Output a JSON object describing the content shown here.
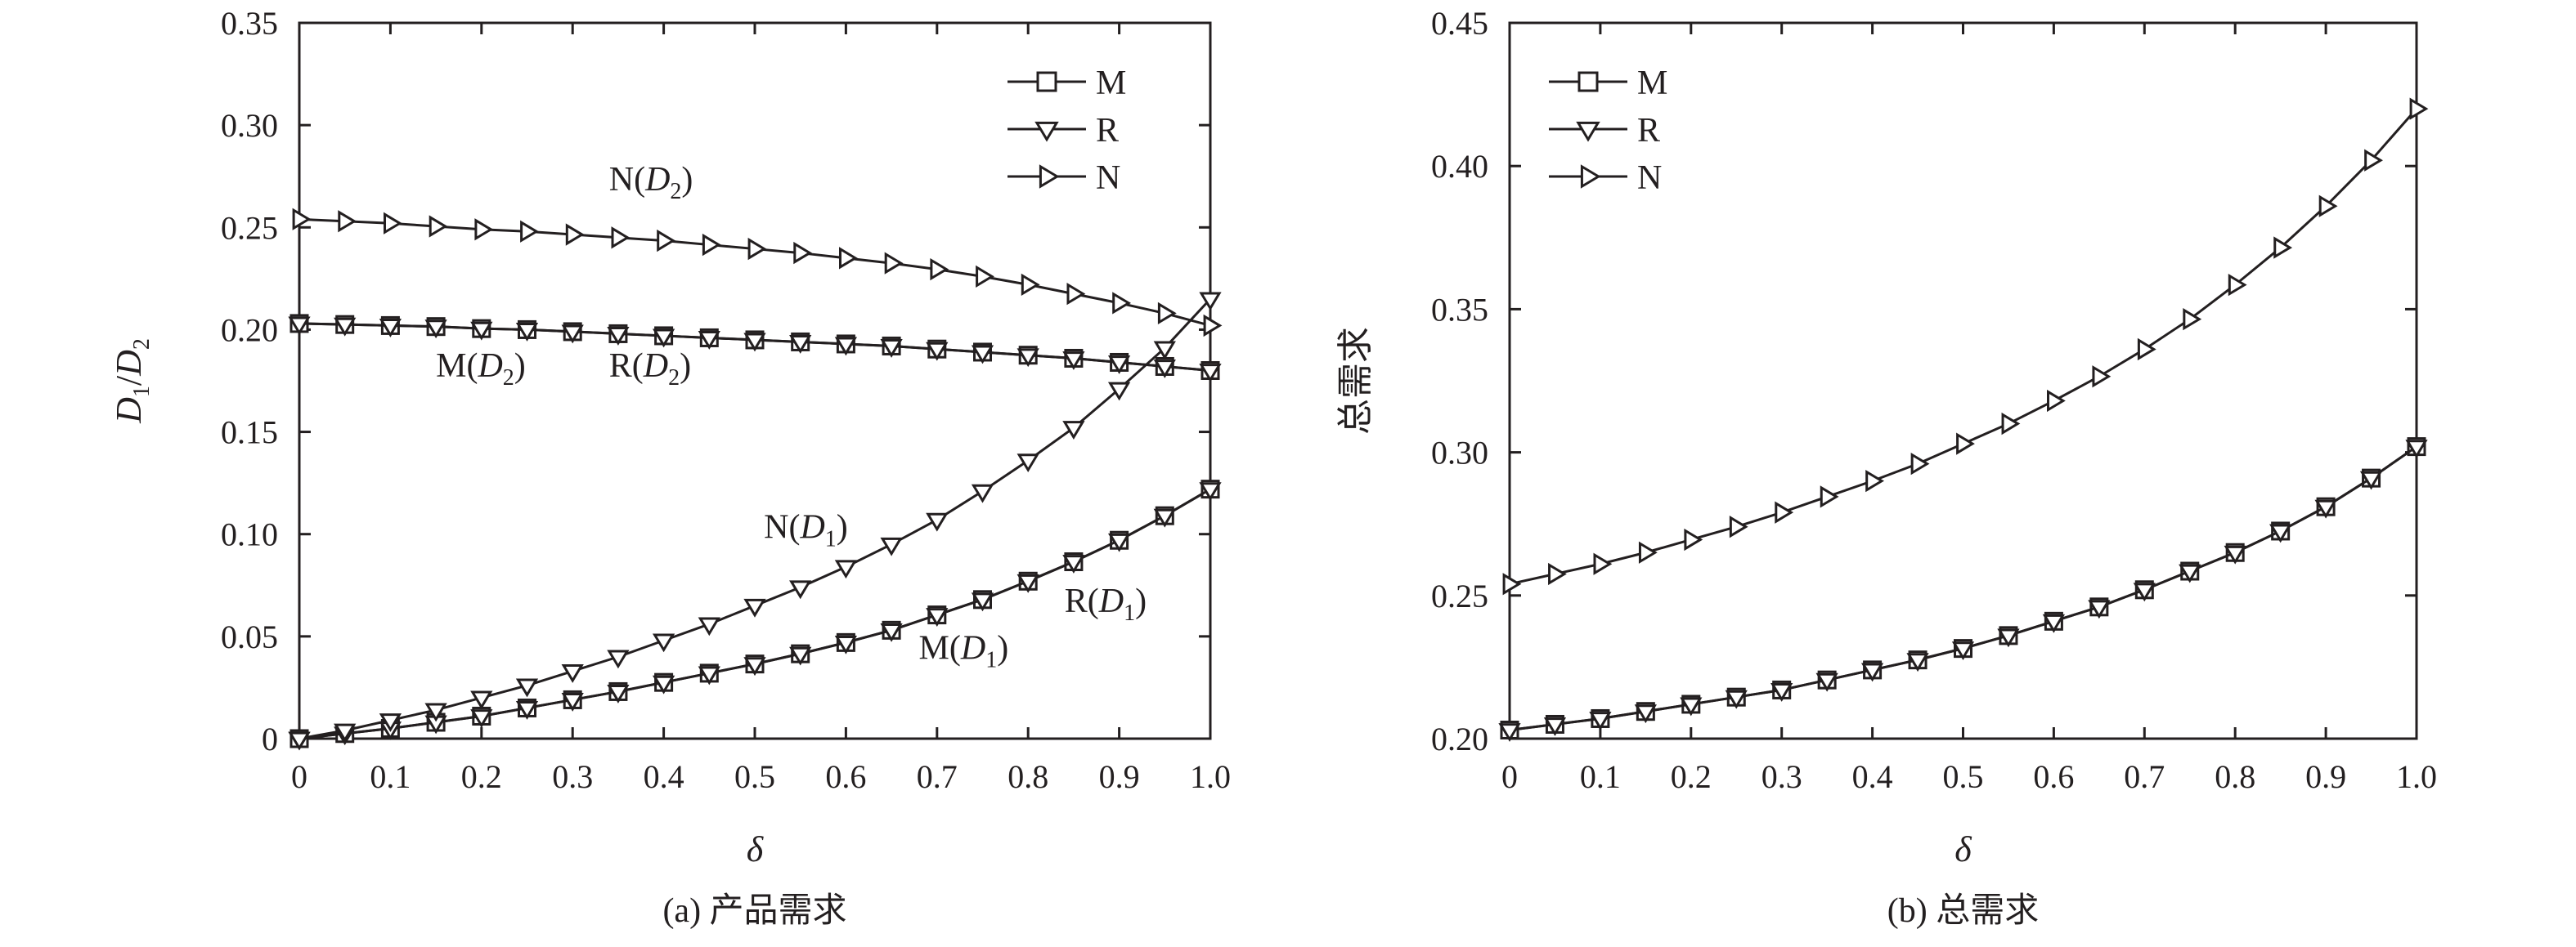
{
  "chart_data": [
    {
      "type": "line",
      "caption": "(a) 产品需求",
      "xlabel": "δ",
      "ylabel": "D1/D2",
      "xlim": [
        0,
        1
      ],
      "ylim": [
        0,
        0.35
      ],
      "xticks": [
        0,
        0.1,
        0.2,
        0.3,
        0.4,
        0.5,
        0.6,
        0.7,
        0.8,
        0.9,
        1.0
      ],
      "xtick_labels": [
        "0",
        "0.1",
        "0.2",
        "0.3",
        "0.4",
        "0.5",
        "0.6",
        "0.7",
        "0.8",
        "0.9",
        "1.0"
      ],
      "yticks": [
        0,
        0.05,
        0.1,
        0.15,
        0.2,
        0.25,
        0.3,
        0.35
      ],
      "ytick_labels": [
        "0",
        "0.05",
        "0.10",
        "0.15",
        "0.20",
        "0.25",
        "0.30",
        "0.35"
      ],
      "legend": [
        {
          "label": "M",
          "marker": "square"
        },
        {
          "label": "R",
          "marker": "triangle-down"
        },
        {
          "label": "N",
          "marker": "triangle-right"
        }
      ],
      "legend_position": "top-right",
      "x": [
        0,
        0.05,
        0.1,
        0.15,
        0.2,
        0.25,
        0.3,
        0.35,
        0.4,
        0.45,
        0.5,
        0.55,
        0.6,
        0.65,
        0.7,
        0.75,
        0.8,
        0.85,
        0.9,
        0.95,
        1.0
      ],
      "series": [
        {
          "name": "M(D2)",
          "marker": "square",
          "values": [
            0.203,
            0.2025,
            0.202,
            0.2015,
            0.2005,
            0.2,
            0.199,
            0.198,
            0.197,
            0.196,
            0.195,
            0.194,
            0.193,
            0.192,
            0.1905,
            0.189,
            0.1875,
            0.186,
            0.184,
            0.182,
            0.18
          ]
        },
        {
          "name": "R(D2)",
          "marker": "triangle-down",
          "values": [
            0.203,
            0.2025,
            0.202,
            0.2015,
            0.2005,
            0.2,
            0.199,
            0.198,
            0.197,
            0.196,
            0.195,
            0.194,
            0.193,
            0.192,
            0.1905,
            0.189,
            0.1875,
            0.186,
            0.184,
            0.182,
            0.18
          ]
        },
        {
          "name": "N(D2)",
          "marker": "triangle-right",
          "values": [
            0.254,
            0.253,
            0.252,
            0.2505,
            0.249,
            0.248,
            0.2465,
            0.245,
            0.2435,
            0.2415,
            0.2395,
            0.2375,
            0.235,
            0.2325,
            0.2295,
            0.226,
            0.222,
            0.2175,
            0.213,
            0.208,
            0.202
          ]
        },
        {
          "name": "M(D1)",
          "marker": "square",
          "values": [
            0,
            0.0025,
            0.005,
            0.008,
            0.011,
            0.015,
            0.019,
            0.023,
            0.0275,
            0.032,
            0.0365,
            0.0415,
            0.047,
            0.053,
            0.0605,
            0.068,
            0.077,
            0.0865,
            0.097,
            0.109,
            0.122
          ]
        },
        {
          "name": "R(D1)",
          "marker": "triangle-down",
          "values": [
            0,
            0.0025,
            0.005,
            0.008,
            0.011,
            0.015,
            0.019,
            0.023,
            0.0275,
            0.032,
            0.0365,
            0.0415,
            0.047,
            0.053,
            0.0605,
            0.068,
            0.077,
            0.0865,
            0.097,
            0.109,
            0.122
          ]
        },
        {
          "name": "N(D1)",
          "marker": "triangle-down",
          "values": [
            0,
            0.004,
            0.009,
            0.014,
            0.02,
            0.026,
            0.033,
            0.04,
            0.048,
            0.056,
            0.065,
            0.074,
            0.084,
            0.095,
            0.107,
            0.121,
            0.136,
            0.152,
            0.171,
            0.191,
            0.215
          ]
        }
      ],
      "annotations": [
        {
          "base": "N(",
          "sym": "D",
          "sub": "2",
          "end": ")",
          "x": 0.34,
          "y": 0.268
        },
        {
          "base": "M(",
          "sym": "D",
          "sub": "2",
          "end": ")",
          "x": 0.15,
          "y": 0.177
        },
        {
          "base": "R(",
          "sym": "D",
          "sub": "2",
          "end": ")",
          "x": 0.34,
          "y": 0.177
        },
        {
          "base": "N(",
          "sym": "D",
          "sub": "1",
          "end": ")",
          "x": 0.51,
          "y": 0.098
        },
        {
          "base": "R(",
          "sym": "D",
          "sub": "1",
          "end": ")",
          "x": 0.84,
          "y": 0.062
        },
        {
          "base": "M(",
          "sym": "D",
          "sub": "1",
          "end": ")",
          "x": 0.68,
          "y": 0.039
        }
      ]
    },
    {
      "type": "line",
      "caption": "(b) 总需求",
      "xlabel": "δ",
      "ylabel": "总需求",
      "xlim": [
        0,
        1
      ],
      "ylim": [
        0.2,
        0.45
      ],
      "xticks": [
        0,
        0.1,
        0.2,
        0.3,
        0.4,
        0.5,
        0.6,
        0.7,
        0.8,
        0.9,
        1.0
      ],
      "xtick_labels": [
        "0",
        "0.1",
        "0.2",
        "0.3",
        "0.4",
        "0.5",
        "0.6",
        "0.7",
        "0.8",
        "0.9",
        "1.0"
      ],
      "yticks": [
        0.2,
        0.25,
        0.3,
        0.35,
        0.4,
        0.45
      ],
      "ytick_labels": [
        "0.20",
        "0.25",
        "0.30",
        "0.35",
        "0.40",
        "0.45"
      ],
      "legend": [
        {
          "label": "M",
          "marker": "square"
        },
        {
          "label": "R",
          "marker": "triangle-down"
        },
        {
          "label": "N",
          "marker": "triangle-right"
        }
      ],
      "legend_position": "top-left",
      "x": [
        0,
        0.05,
        0.1,
        0.15,
        0.2,
        0.25,
        0.3,
        0.35,
        0.4,
        0.45,
        0.5,
        0.55,
        0.6,
        0.65,
        0.7,
        0.75,
        0.8,
        0.85,
        0.9,
        0.95,
        1.0
      ],
      "series": [
        {
          "name": "M",
          "marker": "square",
          "values": [
            0.203,
            0.205,
            0.207,
            0.2095,
            0.212,
            0.2145,
            0.217,
            0.2205,
            0.224,
            0.2275,
            0.2315,
            0.236,
            0.241,
            0.246,
            0.252,
            0.2585,
            0.265,
            0.2725,
            0.281,
            0.291,
            0.302
          ]
        },
        {
          "name": "R",
          "marker": "triangle-down",
          "values": [
            0.203,
            0.205,
            0.207,
            0.2095,
            0.212,
            0.2145,
            0.217,
            0.2205,
            0.224,
            0.2275,
            0.2315,
            0.236,
            0.241,
            0.246,
            0.252,
            0.2585,
            0.265,
            0.2725,
            0.281,
            0.291,
            0.302
          ]
        },
        {
          "name": "N",
          "marker": "triangle-right",
          "values": [
            0.254,
            0.2575,
            0.261,
            0.265,
            0.2695,
            0.274,
            0.279,
            0.2845,
            0.29,
            0.296,
            0.303,
            0.31,
            0.318,
            0.3265,
            0.336,
            0.3465,
            0.3585,
            0.3715,
            0.386,
            0.402,
            0.42
          ]
        }
      ]
    }
  ]
}
